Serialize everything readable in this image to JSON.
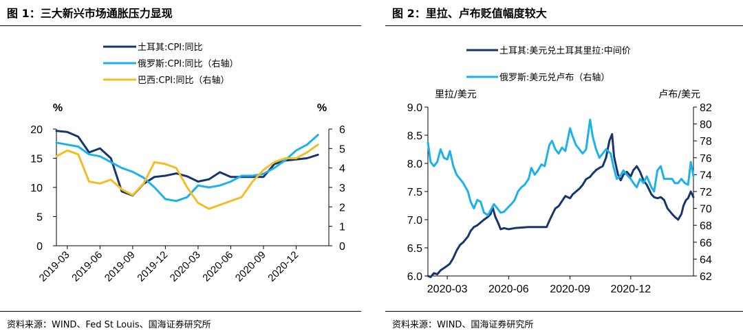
{
  "chart_data": [
    {
      "type": "line",
      "title": "图 1：三大新兴市场通胀压力显现",
      "source": "资料来源：WIND、Fed St Louis、国海证券研究所",
      "y_unit_left": "%",
      "y_unit_right": "%",
      "ylim_left": [
        0,
        20
      ],
      "ylim_right": [
        0,
        6
      ],
      "yticks_left": [
        "0",
        "5",
        "10",
        "15",
        "20"
      ],
      "yticks_right": [
        "0",
        "1",
        "2",
        "3",
        "4",
        "5",
        "6"
      ],
      "x_range": [
        "2019-02",
        "2021-03"
      ],
      "xticks": [
        "2019-03",
        "2019-06",
        "2019-09",
        "2019-12",
        "2020-03",
        "2020-06",
        "2020-09",
        "2020-12"
      ],
      "legend_position": "top-center",
      "grid": false,
      "series": [
        {
          "name": "土耳其:CPI:同比",
          "axis": "left",
          "color": "#16356e",
          "x": [
            "2019-02",
            "2019-03",
            "2019-04",
            "2019-05",
            "2019-06",
            "2019-07",
            "2019-08",
            "2019-09",
            "2019-10",
            "2019-11",
            "2019-12",
            "2020-01",
            "2020-02",
            "2020-03",
            "2020-04",
            "2020-05",
            "2020-06",
            "2020-07",
            "2020-08",
            "2020-09",
            "2020-10",
            "2020-11",
            "2020-12",
            "2021-01",
            "2021-02"
          ],
          "values": [
            19.7,
            19.5,
            18.7,
            16.0,
            16.7,
            15.0,
            9.3,
            8.6,
            10.6,
            11.8,
            12.0,
            12.4,
            11.9,
            11.0,
            11.4,
            12.6,
            11.8,
            11.8,
            11.8,
            11.8,
            14.0,
            14.6,
            14.8,
            15.0,
            15.6
          ]
        },
        {
          "name": "俄罗斯:CPI:同比（右轴）",
          "axis": "right",
          "color": "#1ab2ea",
          "x": [
            "2019-02",
            "2019-03",
            "2019-04",
            "2019-05",
            "2019-06",
            "2019-07",
            "2019-08",
            "2019-09",
            "2019-10",
            "2019-11",
            "2019-12",
            "2020-01",
            "2020-02",
            "2020-03",
            "2020-04",
            "2020-05",
            "2020-06",
            "2020-07",
            "2020-08",
            "2020-09",
            "2020-10",
            "2020-11",
            "2020-12",
            "2021-01",
            "2021-02"
          ],
          "values": [
            5.3,
            5.2,
            5.1,
            4.7,
            4.6,
            4.3,
            4.0,
            3.8,
            3.5,
            3.0,
            2.4,
            2.3,
            2.5,
            3.1,
            3.0,
            3.1,
            3.3,
            3.6,
            3.6,
            3.7,
            4.0,
            4.4,
            4.9,
            5.2,
            5.7
          ]
        },
        {
          "name": "巴西:CPI:同比（右轴）",
          "axis": "right",
          "color": "#f4bd26",
          "x": [
            "2019-02",
            "2019-03",
            "2019-04",
            "2019-05",
            "2019-06",
            "2019-07",
            "2019-08",
            "2019-09",
            "2019-10",
            "2019-11",
            "2019-12",
            "2020-01",
            "2020-02",
            "2020-03",
            "2020-04",
            "2020-05",
            "2020-06",
            "2020-07",
            "2020-08",
            "2020-09",
            "2020-10",
            "2020-11",
            "2020-12",
            "2021-01",
            "2021-02"
          ],
          "values": [
            4.6,
            4.9,
            4.7,
            3.3,
            3.2,
            3.4,
            2.9,
            2.6,
            3.2,
            4.3,
            4.2,
            4.0,
            3.0,
            2.2,
            1.9,
            2.1,
            2.3,
            2.5,
            3.3,
            3.9,
            4.3,
            4.5,
            4.5,
            4.8,
            5.2
          ]
        }
      ]
    },
    {
      "type": "line",
      "title": "图 2：里拉、卢布贬值幅度较大",
      "source": "资料来源：WIND、国海证券研究所",
      "y_unit_left": "里拉/美元",
      "y_unit_right": "卢布/美元",
      "ylim_left": [
        6.0,
        9.0
      ],
      "ylim_right": [
        62,
        82
      ],
      "yticks_left": [
        "6.0",
        "6.5",
        "7.0",
        "7.5",
        "8.0",
        "8.5",
        "9.0"
      ],
      "yticks_right": [
        "62",
        "64",
        "66",
        "68",
        "70",
        "72",
        "74",
        "76",
        "78",
        "80",
        "82"
      ],
      "x_range": [
        "2020-02-01",
        "2021-03-05"
      ],
      "xticks": [
        "2020-03",
        "2020-06",
        "2020-09",
        "2020-12"
      ],
      "legend_position": "top-center",
      "grid": false,
      "series": [
        {
          "name": "土耳其:美元兑土耳其里拉:中间价",
          "axis": "left",
          "color": "#16356e",
          "x": [
            "2020-02-01",
            "2020-02-05",
            "2020-02-10",
            "2020-02-15",
            "2020-02-20",
            "2020-02-25",
            "2020-03-01",
            "2020-03-05",
            "2020-03-10",
            "2020-03-15",
            "2020-03-20",
            "2020-03-25",
            "2020-04-01",
            "2020-04-05",
            "2020-04-10",
            "2020-04-15",
            "2020-04-20",
            "2020-04-25",
            "2020-05-01",
            "2020-05-05",
            "2020-05-08",
            "2020-05-12",
            "2020-05-16",
            "2020-05-20",
            "2020-05-25",
            "2020-06-01",
            "2020-06-10",
            "2020-06-20",
            "2020-07-01",
            "2020-07-10",
            "2020-07-20",
            "2020-07-28",
            "2020-08-01",
            "2020-08-05",
            "2020-08-10",
            "2020-08-15",
            "2020-08-20",
            "2020-08-25",
            "2020-09-01",
            "2020-09-05",
            "2020-09-10",
            "2020-09-15",
            "2020-09-20",
            "2020-09-25",
            "2020-10-01",
            "2020-10-05",
            "2020-10-10",
            "2020-10-15",
            "2020-10-20",
            "2020-10-25",
            "2020-10-30",
            "2020-11-03",
            "2020-11-06",
            "2020-11-10",
            "2020-11-12",
            "2020-11-16",
            "2020-11-20",
            "2020-11-25",
            "2020-12-01",
            "2020-12-05",
            "2020-12-10",
            "2020-12-15",
            "2020-12-20",
            "2020-12-25",
            "2021-01-01",
            "2021-01-05",
            "2021-01-10",
            "2021-01-15",
            "2021-01-20",
            "2021-01-25",
            "2021-02-01",
            "2021-02-05",
            "2021-02-10",
            "2021-02-15",
            "2021-02-18",
            "2021-02-22",
            "2021-02-25",
            "2021-03-01",
            "2021-03-05"
          ],
          "values": [
            6.0,
            5.98,
            6.05,
            6.03,
            6.1,
            6.14,
            6.18,
            6.22,
            6.32,
            6.45,
            6.55,
            6.6,
            6.7,
            6.8,
            6.87,
            6.9,
            6.95,
            7.0,
            7.05,
            7.1,
            7.22,
            7.05,
            6.95,
            6.83,
            6.85,
            6.83,
            6.85,
            6.86,
            6.87,
            6.87,
            6.87,
            6.87,
            6.98,
            7.08,
            7.2,
            7.24,
            7.33,
            7.42,
            7.38,
            7.45,
            7.5,
            7.55,
            7.62,
            7.72,
            7.76,
            7.82,
            7.88,
            7.92,
            7.95,
            8.1,
            8.4,
            8.52,
            8.12,
            7.9,
            7.8,
            7.7,
            7.8,
            7.85,
            7.77,
            7.88,
            7.95,
            7.85,
            7.7,
            7.62,
            7.45,
            7.4,
            7.38,
            7.4,
            7.35,
            7.2,
            7.1,
            7.05,
            7.0,
            7.1,
            7.25,
            7.35,
            7.38,
            7.5,
            7.4
          ]
        },
        {
          "name": "俄罗斯:美元兑卢布（右轴）",
          "axis": "right",
          "color": "#1ab2ea",
          "x": [
            "2020-02-01",
            "2020-02-05",
            "2020-02-10",
            "2020-02-15",
            "2020-02-20",
            "2020-02-25",
            "2020-03-01",
            "2020-03-05",
            "2020-03-10",
            "2020-03-15",
            "2020-03-20",
            "2020-03-25",
            "2020-04-01",
            "2020-04-05",
            "2020-04-10",
            "2020-04-15",
            "2020-04-20",
            "2020-04-25",
            "2020-05-01",
            "2020-05-05",
            "2020-05-10",
            "2020-05-15",
            "2020-05-20",
            "2020-05-25",
            "2020-06-01",
            "2020-06-05",
            "2020-06-10",
            "2020-06-15",
            "2020-06-20",
            "2020-06-25",
            "2020-07-01",
            "2020-07-05",
            "2020-07-10",
            "2020-07-15",
            "2020-07-20",
            "2020-07-25",
            "2020-08-01",
            "2020-08-05",
            "2020-08-10",
            "2020-08-15",
            "2020-08-20",
            "2020-08-25",
            "2020-09-01",
            "2020-09-05",
            "2020-09-10",
            "2020-09-15",
            "2020-09-20",
            "2020-09-25",
            "2020-10-01",
            "2020-10-05",
            "2020-10-10",
            "2020-10-15",
            "2020-10-20",
            "2020-10-25",
            "2020-11-01",
            "2020-11-05",
            "2020-11-10",
            "2020-11-15",
            "2020-11-20",
            "2020-11-25",
            "2020-12-01",
            "2020-12-05",
            "2020-12-10",
            "2020-12-15",
            "2020-12-20",
            "2020-12-25",
            "2021-01-01",
            "2021-01-05",
            "2021-01-10",
            "2021-01-15",
            "2021-01-20",
            "2021-01-25",
            "2021-02-01",
            "2021-02-05",
            "2021-02-10",
            "2021-02-15",
            "2021-02-20",
            "2021-02-25",
            "2021-03-01",
            "2021-03-05"
          ],
          "values": [
            77.8,
            75.5,
            75.0,
            75.5,
            77.0,
            76.0,
            75.8,
            76.8,
            75.0,
            74.0,
            73.5,
            73.0,
            72.0,
            70.8,
            70.0,
            71.0,
            70.8,
            69.5,
            69.2,
            69.8,
            70.5,
            70.0,
            69.5,
            69.6,
            70.2,
            70.5,
            71.0,
            72.0,
            72.5,
            72.8,
            73.5,
            74.8,
            74.0,
            74.5,
            75.2,
            75.0,
            77.5,
            78.0,
            77.0,
            76.5,
            77.2,
            76.8,
            79.5,
            78.5,
            77.5,
            77.0,
            76.5,
            77.0,
            80.5,
            78.5,
            77.0,
            76.0,
            76.5,
            77.0,
            76.5,
            75.0,
            73.5,
            73.8,
            74.5,
            74.0,
            73.5,
            73.0,
            72.5,
            73.5,
            73.0,
            73.8,
            72.5,
            72.0,
            74.5,
            75.0,
            73.5,
            73.5,
            73.5,
            73.0,
            73.0,
            73.5,
            73.0,
            72.8,
            75.5,
            73.8
          ]
        }
      ]
    }
  ]
}
